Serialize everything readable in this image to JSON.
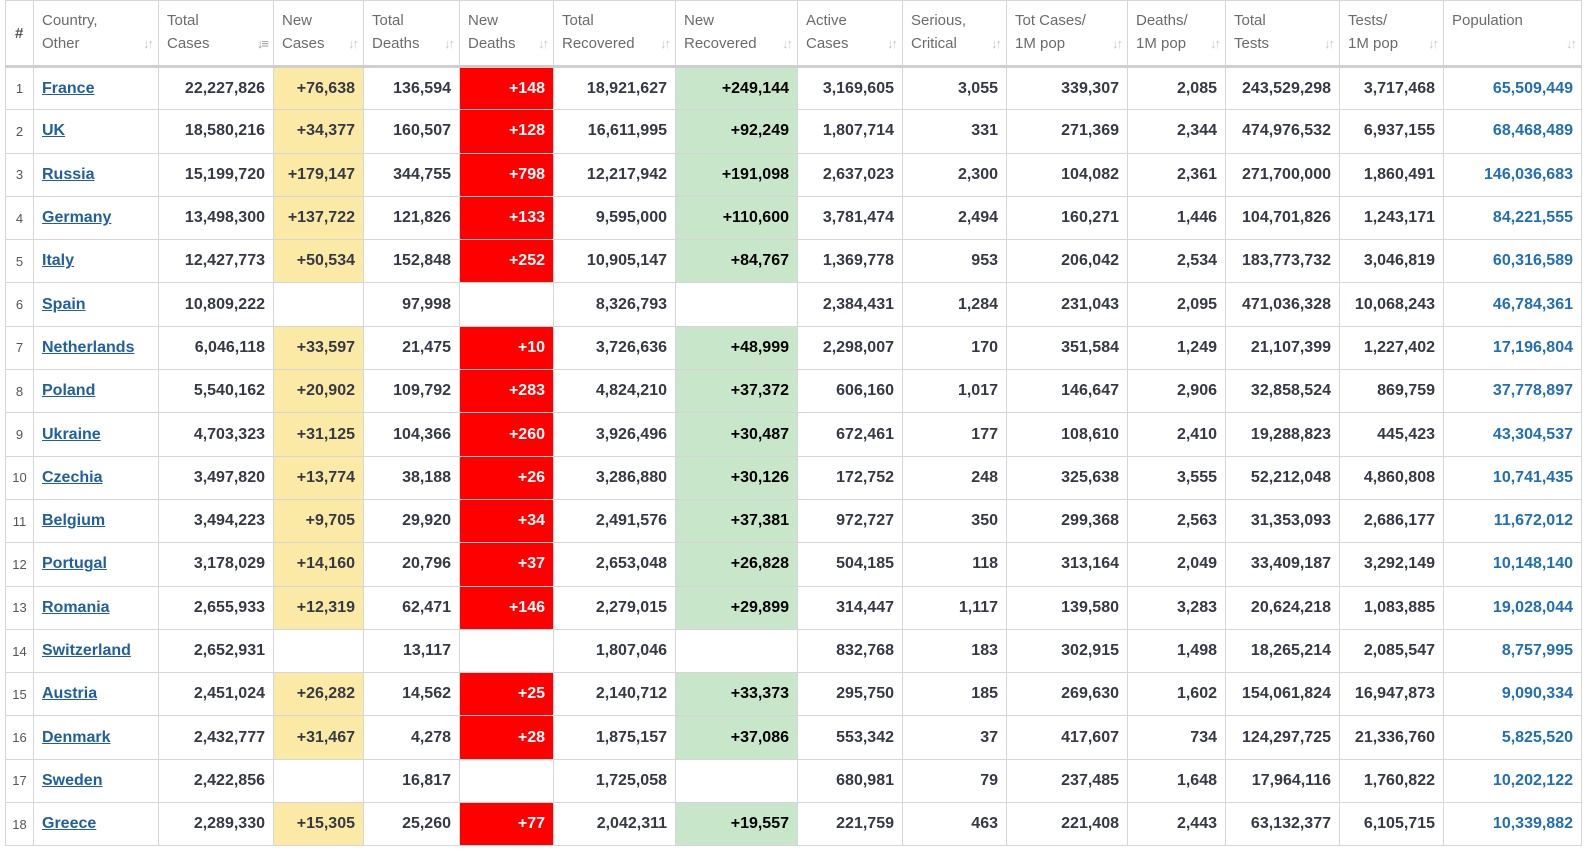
{
  "colors": {
    "new_cases_bg": "#fbeaa5",
    "new_deaths_bg": "#ff0000",
    "new_recovered_bg": "#c8e6c9",
    "country_link": "#1f5f9f",
    "population_text": "#1f6fb5"
  },
  "table": {
    "headers": [
      {
        "key": "rank",
        "lines": [
          "#"
        ],
        "sort_icon": "none"
      },
      {
        "key": "country",
        "lines": [
          "Country,",
          "Other"
        ],
        "sort_icon": "sort-icon"
      },
      {
        "key": "total_cases",
        "lines": [
          "Total",
          "Cases"
        ],
        "sort_icon": "sort-desc-icon"
      },
      {
        "key": "new_cases",
        "lines": [
          "New",
          "Cases"
        ],
        "sort_icon": "sort-icon"
      },
      {
        "key": "total_deaths",
        "lines": [
          "Total",
          "Deaths"
        ],
        "sort_icon": "sort-icon"
      },
      {
        "key": "new_deaths",
        "lines": [
          "New",
          "Deaths"
        ],
        "sort_icon": "sort-icon"
      },
      {
        "key": "total_recovered",
        "lines": [
          "Total",
          "Recovered"
        ],
        "sort_icon": "sort-icon"
      },
      {
        "key": "new_recovered",
        "lines": [
          "New",
          "Recovered"
        ],
        "sort_icon": "sort-icon"
      },
      {
        "key": "active_cases",
        "lines": [
          "Active",
          "Cases"
        ],
        "sort_icon": "sort-icon"
      },
      {
        "key": "serious",
        "lines": [
          "Serious,",
          "Critical"
        ],
        "sort_icon": "sort-icon"
      },
      {
        "key": "cases_per_1m",
        "lines": [
          "Tot Cases/",
          "1M pop"
        ],
        "sort_icon": "sort-icon"
      },
      {
        "key": "deaths_per_1m",
        "lines": [
          "Deaths/",
          "1M pop"
        ],
        "sort_icon": "sort-icon"
      },
      {
        "key": "total_tests",
        "lines": [
          "Total",
          "Tests"
        ],
        "sort_icon": "sort-icon"
      },
      {
        "key": "tests_per_1m",
        "lines": [
          "Tests/",
          "1M pop"
        ],
        "sort_icon": "sort-icon"
      },
      {
        "key": "population",
        "lines": [
          "Population"
        ],
        "sort_icon": "sort-icon"
      }
    ],
    "rows": [
      {
        "rank": "1",
        "country": "France",
        "total_cases": "22,227,826",
        "new_cases": "+76,638",
        "total_deaths": "136,594",
        "new_deaths": "+148",
        "total_recovered": "18,921,627",
        "new_recovered": "+249,144",
        "active_cases": "3,169,605",
        "serious": "3,055",
        "cases_per_1m": "339,307",
        "deaths_per_1m": "2,085",
        "total_tests": "243,529,298",
        "tests_per_1m": "3,717,468",
        "population": "65,509,449"
      },
      {
        "rank": "2",
        "country": "UK",
        "total_cases": "18,580,216",
        "new_cases": "+34,377",
        "total_deaths": "160,507",
        "new_deaths": "+128",
        "total_recovered": "16,611,995",
        "new_recovered": "+92,249",
        "active_cases": "1,807,714",
        "serious": "331",
        "cases_per_1m": "271,369",
        "deaths_per_1m": "2,344",
        "total_tests": "474,976,532",
        "tests_per_1m": "6,937,155",
        "population": "68,468,489"
      },
      {
        "rank": "3",
        "country": "Russia",
        "total_cases": "15,199,720",
        "new_cases": "+179,147",
        "total_deaths": "344,755",
        "new_deaths": "+798",
        "total_recovered": "12,217,942",
        "new_recovered": "+191,098",
        "active_cases": "2,637,023",
        "serious": "2,300",
        "cases_per_1m": "104,082",
        "deaths_per_1m": "2,361",
        "total_tests": "271,700,000",
        "tests_per_1m": "1,860,491",
        "population": "146,036,683"
      },
      {
        "rank": "4",
        "country": "Germany",
        "total_cases": "13,498,300",
        "new_cases": "+137,722",
        "total_deaths": "121,826",
        "new_deaths": "+133",
        "total_recovered": "9,595,000",
        "new_recovered": "+110,600",
        "active_cases": "3,781,474",
        "serious": "2,494",
        "cases_per_1m": "160,271",
        "deaths_per_1m": "1,446",
        "total_tests": "104,701,826",
        "tests_per_1m": "1,243,171",
        "population": "84,221,555"
      },
      {
        "rank": "5",
        "country": "Italy",
        "total_cases": "12,427,773",
        "new_cases": "+50,534",
        "total_deaths": "152,848",
        "new_deaths": "+252",
        "total_recovered": "10,905,147",
        "new_recovered": "+84,767",
        "active_cases": "1,369,778",
        "serious": "953",
        "cases_per_1m": "206,042",
        "deaths_per_1m": "2,534",
        "total_tests": "183,773,732",
        "tests_per_1m": "3,046,819",
        "population": "60,316,589"
      },
      {
        "rank": "6",
        "country": "Spain",
        "total_cases": "10,809,222",
        "new_cases": "",
        "total_deaths": "97,998",
        "new_deaths": "",
        "total_recovered": "8,326,793",
        "new_recovered": "",
        "active_cases": "2,384,431",
        "serious": "1,284",
        "cases_per_1m": "231,043",
        "deaths_per_1m": "2,095",
        "total_tests": "471,036,328",
        "tests_per_1m": "10,068,243",
        "population": "46,784,361"
      },
      {
        "rank": "7",
        "country": "Netherlands",
        "total_cases": "6,046,118",
        "new_cases": "+33,597",
        "total_deaths": "21,475",
        "new_deaths": "+10",
        "total_recovered": "3,726,636",
        "new_recovered": "+48,999",
        "active_cases": "2,298,007",
        "serious": "170",
        "cases_per_1m": "351,584",
        "deaths_per_1m": "1,249",
        "total_tests": "21,107,399",
        "tests_per_1m": "1,227,402",
        "population": "17,196,804"
      },
      {
        "rank": "8",
        "country": "Poland",
        "total_cases": "5,540,162",
        "new_cases": "+20,902",
        "total_deaths": "109,792",
        "new_deaths": "+283",
        "total_recovered": "4,824,210",
        "new_recovered": "+37,372",
        "active_cases": "606,160",
        "serious": "1,017",
        "cases_per_1m": "146,647",
        "deaths_per_1m": "2,906",
        "total_tests": "32,858,524",
        "tests_per_1m": "869,759",
        "population": "37,778,897"
      },
      {
        "rank": "9",
        "country": "Ukraine",
        "total_cases": "4,703,323",
        "new_cases": "+31,125",
        "total_deaths": "104,366",
        "new_deaths": "+260",
        "total_recovered": "3,926,496",
        "new_recovered": "+30,487",
        "active_cases": "672,461",
        "serious": "177",
        "cases_per_1m": "108,610",
        "deaths_per_1m": "2,410",
        "total_tests": "19,288,823",
        "tests_per_1m": "445,423",
        "population": "43,304,537"
      },
      {
        "rank": "10",
        "country": "Czechia",
        "total_cases": "3,497,820",
        "new_cases": "+13,774",
        "total_deaths": "38,188",
        "new_deaths": "+26",
        "total_recovered": "3,286,880",
        "new_recovered": "+30,126",
        "active_cases": "172,752",
        "serious": "248",
        "cases_per_1m": "325,638",
        "deaths_per_1m": "3,555",
        "total_tests": "52,212,048",
        "tests_per_1m": "4,860,808",
        "population": "10,741,435"
      },
      {
        "rank": "11",
        "country": "Belgium",
        "total_cases": "3,494,223",
        "new_cases": "+9,705",
        "total_deaths": "29,920",
        "new_deaths": "+34",
        "total_recovered": "2,491,576",
        "new_recovered": "+37,381",
        "active_cases": "972,727",
        "serious": "350",
        "cases_per_1m": "299,368",
        "deaths_per_1m": "2,563",
        "total_tests": "31,353,093",
        "tests_per_1m": "2,686,177",
        "population": "11,672,012"
      },
      {
        "rank": "12",
        "country": "Portugal",
        "total_cases": "3,178,029",
        "new_cases": "+14,160",
        "total_deaths": "20,796",
        "new_deaths": "+37",
        "total_recovered": "2,653,048",
        "new_recovered": "+26,828",
        "active_cases": "504,185",
        "serious": "118",
        "cases_per_1m": "313,164",
        "deaths_per_1m": "2,049",
        "total_tests": "33,409,187",
        "tests_per_1m": "3,292,149",
        "population": "10,148,140"
      },
      {
        "rank": "13",
        "country": "Romania",
        "total_cases": "2,655,933",
        "new_cases": "+12,319",
        "total_deaths": "62,471",
        "new_deaths": "+146",
        "total_recovered": "2,279,015",
        "new_recovered": "+29,899",
        "active_cases": "314,447",
        "serious": "1,117",
        "cases_per_1m": "139,580",
        "deaths_per_1m": "3,283",
        "total_tests": "20,624,218",
        "tests_per_1m": "1,083,885",
        "population": "19,028,044"
      },
      {
        "rank": "14",
        "country": "Switzerland",
        "total_cases": "2,652,931",
        "new_cases": "",
        "total_deaths": "13,117",
        "new_deaths": "",
        "total_recovered": "1,807,046",
        "new_recovered": "",
        "active_cases": "832,768",
        "serious": "183",
        "cases_per_1m": "302,915",
        "deaths_per_1m": "1,498",
        "total_tests": "18,265,214",
        "tests_per_1m": "2,085,547",
        "population": "8,757,995"
      },
      {
        "rank": "15",
        "country": "Austria",
        "total_cases": "2,451,024",
        "new_cases": "+26,282",
        "total_deaths": "14,562",
        "new_deaths": "+25",
        "total_recovered": "2,140,712",
        "new_recovered": "+33,373",
        "active_cases": "295,750",
        "serious": "185",
        "cases_per_1m": "269,630",
        "deaths_per_1m": "1,602",
        "total_tests": "154,061,824",
        "tests_per_1m": "16,947,873",
        "population": "9,090,334"
      },
      {
        "rank": "16",
        "country": "Denmark",
        "total_cases": "2,432,777",
        "new_cases": "+31,467",
        "total_deaths": "4,278",
        "new_deaths": "+28",
        "total_recovered": "1,875,157",
        "new_recovered": "+37,086",
        "active_cases": "553,342",
        "serious": "37",
        "cases_per_1m": "417,607",
        "deaths_per_1m": "734",
        "total_tests": "124,297,725",
        "tests_per_1m": "21,336,760",
        "population": "5,825,520"
      },
      {
        "rank": "17",
        "country": "Sweden",
        "total_cases": "2,422,856",
        "new_cases": "",
        "total_deaths": "16,817",
        "new_deaths": "",
        "total_recovered": "1,725,058",
        "new_recovered": "",
        "active_cases": "680,981",
        "serious": "79",
        "cases_per_1m": "237,485",
        "deaths_per_1m": "1,648",
        "total_tests": "17,964,116",
        "tests_per_1m": "1,760,822",
        "population": "10,202,122"
      },
      {
        "rank": "18",
        "country": "Greece",
        "total_cases": "2,289,330",
        "new_cases": "+15,305",
        "total_deaths": "25,260",
        "new_deaths": "+77",
        "total_recovered": "2,042,311",
        "new_recovered": "+19,557",
        "active_cases": "221,759",
        "serious": "463",
        "cases_per_1m": "221,408",
        "deaths_per_1m": "2,443",
        "total_tests": "63,132,377",
        "tests_per_1m": "6,105,715",
        "population": "10,339,882"
      }
    ]
  }
}
